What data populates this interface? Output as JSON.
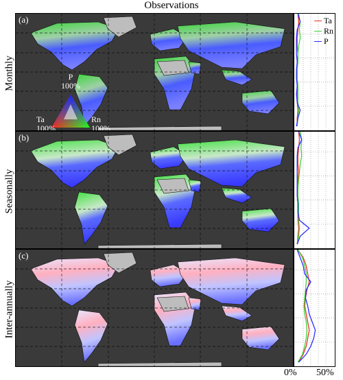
{
  "figure": {
    "title": "Observations",
    "rows": [
      {
        "panel": "(a)",
        "ylabel": "Monthly"
      },
      {
        "panel": "(b)",
        "ylabel": "Seasonally"
      },
      {
        "panel": "(c)",
        "ylabel": "Inter-annually"
      }
    ],
    "ternary": {
      "top": "P",
      "top_pct": "100%",
      "left": "Ta",
      "left_pct": "100%",
      "right": "Rn",
      "right_pct": "100%"
    },
    "legend": [
      {
        "label": "Ta",
        "color": "#e8322b"
      },
      {
        "label": "Rn",
        "color": "#3fd23a"
      },
      {
        "label": "P",
        "color": "#2c2cff"
      }
    ],
    "x_ticks": [
      "0%",
      "50%"
    ],
    "colors": {
      "ocean": "#3a3a3a",
      "no_data": "#bdbdbd"
    }
  },
  "chart_data": {
    "type": "line",
    "orientation": "horizontal-profile",
    "xlabel": "",
    "ylabel": "",
    "xlim": [
      0,
      50
    ],
    "latitude_range": [
      -60,
      85
    ],
    "latitude": [
      85,
      75,
      65,
      55,
      45,
      35,
      25,
      15,
      5,
      -5,
      -15,
      -25,
      -35,
      -45,
      -55
    ],
    "panels": [
      {
        "panel": "(a)",
        "series": [
          {
            "name": "Ta",
            "values": [
              3,
              4,
              3,
              2,
              2,
              3,
              2,
              2,
              2,
              2,
              2,
              2,
              3,
              2,
              2
            ]
          },
          {
            "name": "Rn",
            "values": [
              4,
              6,
              5,
              6,
              4,
              3,
              3,
              2,
              2,
              3,
              3,
              3,
              4,
              3,
              2
            ]
          },
          {
            "name": "P",
            "values": [
              3,
              6,
              2,
              1,
              1,
              1,
              2,
              1,
              1,
              2,
              1,
              2,
              6,
              3,
              1
            ]
          }
        ]
      },
      {
        "panel": "(b)",
        "series": [
          {
            "name": "Ta",
            "values": [
              4,
              5,
              4,
              3,
              3,
              4,
              3,
              3,
              3,
              3,
              3,
              3,
              4,
              3,
              2
            ]
          },
          {
            "name": "Rn",
            "values": [
              6,
              8,
              7,
              8,
              6,
              5,
              4,
              3,
              3,
              4,
              4,
              4,
              5,
              4,
              2
            ]
          },
          {
            "name": "P",
            "values": [
              4,
              8,
              3,
              2,
              2,
              2,
              2,
              2,
              2,
              3,
              3,
              5,
              18,
              6,
              2
            ]
          }
        ]
      },
      {
        "panel": "(c)",
        "series": [
          {
            "name": "Ta",
            "values": [
              3,
              10,
              14,
              16,
              18,
              15,
              13,
              12,
              14,
              16,
              18,
              16,
              14,
              10,
              4
            ]
          },
          {
            "name": "Rn",
            "values": [
              3,
              9,
              12,
              14,
              14,
              13,
              12,
              11,
              12,
              14,
              15,
              14,
              12,
              9,
              3
            ]
          },
          {
            "name": "P",
            "values": [
              2,
              6,
              10,
              12,
              20,
              14,
              13,
              16,
              18,
              22,
              26,
              24,
              20,
              14,
              4
            ]
          }
        ]
      }
    ]
  }
}
